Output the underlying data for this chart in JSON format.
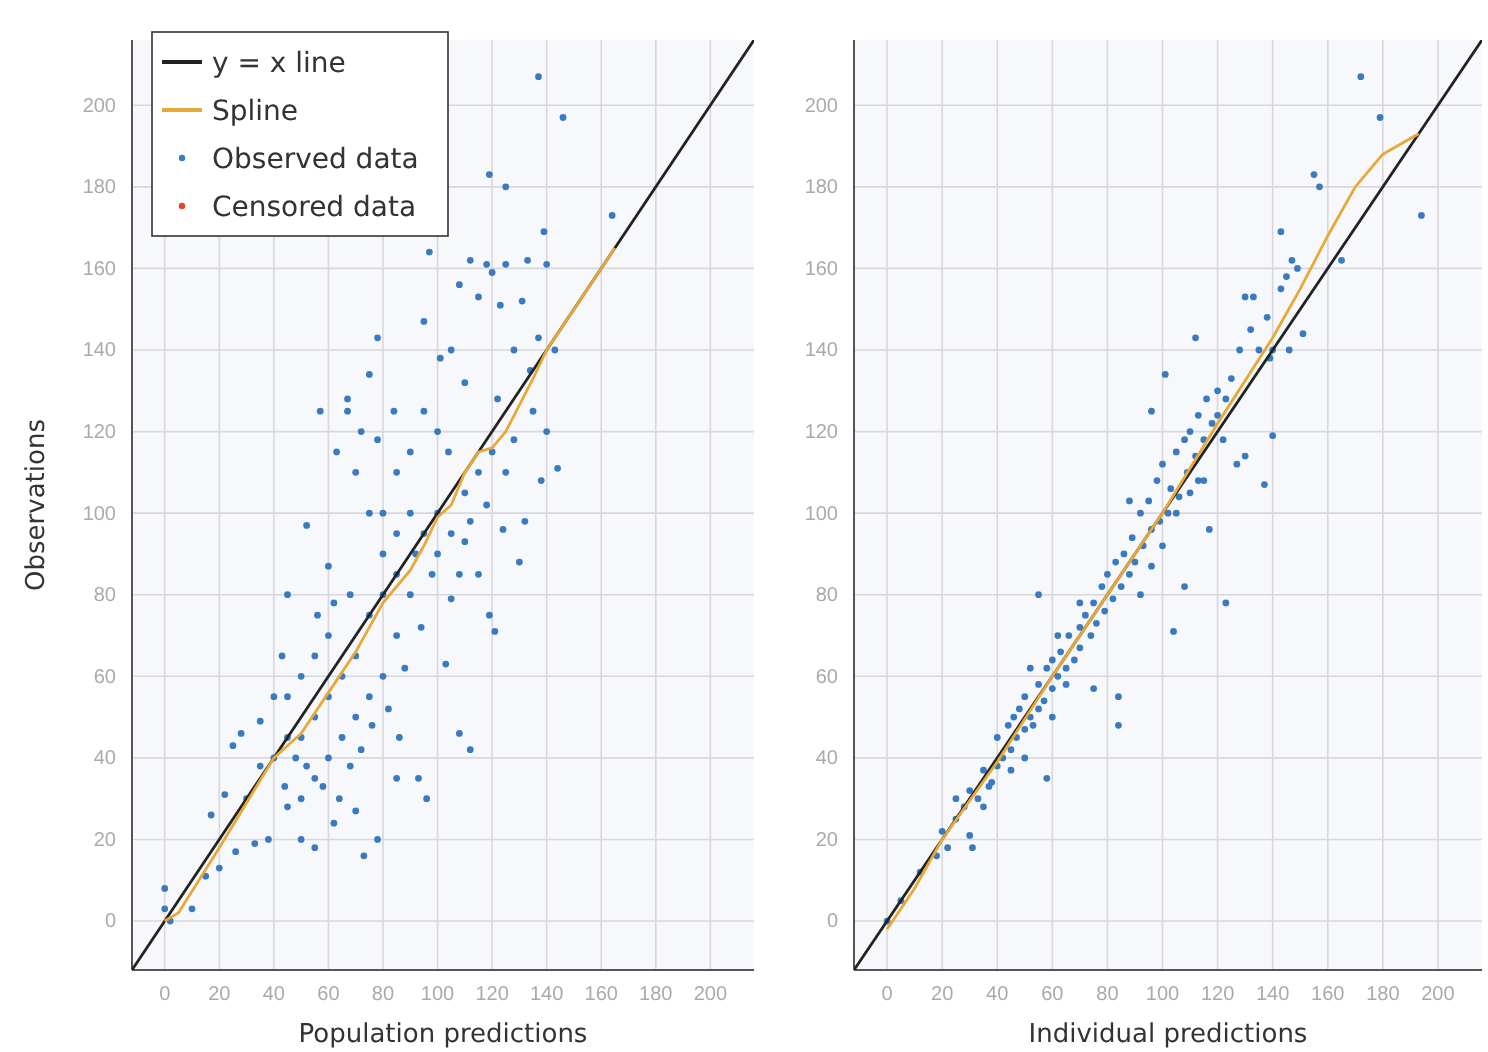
{
  "chart_data": [
    {
      "type": "scatter",
      "xlabel": "Population predictions",
      "ylabel": "Observations",
      "xlim": [
        -12,
        216
      ],
      "ylim": [
        -12,
        216
      ],
      "xticks": [
        0,
        20,
        40,
        60,
        80,
        100,
        120,
        140,
        160,
        180,
        200
      ],
      "yticks": [
        0,
        20,
        40,
        60,
        80,
        100,
        120,
        140,
        160,
        180,
        200
      ],
      "grid": true,
      "legend": "top left",
      "series": [
        {
          "name": "y = x line",
          "type": "line",
          "color": "#222222",
          "x": [
            -12,
            216
          ],
          "values": [
            -12,
            216
          ]
        },
        {
          "name": "Spline",
          "type": "line",
          "color": "#e8a838",
          "x": [
            0,
            5,
            20,
            40,
            50,
            60,
            70,
            80,
            90,
            95,
            100,
            105,
            110,
            115,
            120,
            125,
            135,
            140,
            150,
            165
          ],
          "values": [
            0,
            2,
            18,
            40,
            46,
            56,
            66,
            78,
            86,
            92,
            99,
            102,
            110,
            115,
            116,
            120,
            133,
            140,
            150,
            165
          ]
        },
        {
          "name": "Observed data",
          "color": "#3a7bbf",
          "x": [
            137,
            146,
            119,
            125,
            164,
            139,
            140,
            97,
            112,
            118,
            120,
            125,
            133,
            108,
            115,
            123,
            131,
            78,
            95,
            105,
            128,
            137,
            143,
            144,
            140,
            57,
            67,
            67,
            75,
            84,
            101,
            110,
            122,
            135,
            138,
            132,
            130,
            124,
            119,
            121,
            115,
            110,
            105,
            103,
            112,
            108,
            93,
            96,
            86,
            85,
            78,
            73,
            70,
            62,
            55,
            50,
            44,
            38,
            33,
            26,
            20,
            15,
            10,
            0,
            0,
            2,
            17,
            22,
            25,
            28,
            35,
            40,
            43,
            45,
            52,
            60,
            63,
            70,
            72,
            78,
            80,
            85,
            90,
            95,
            100,
            104,
            90,
            95,
            100,
            110,
            115,
            120,
            125,
            100,
            90,
            85,
            80,
            75,
            70,
            65,
            60,
            55,
            50,
            45,
            50,
            55,
            60,
            65,
            70,
            75,
            80,
            85,
            60,
            55,
            50,
            45,
            48,
            52,
            58,
            64,
            68,
            72,
            76,
            82,
            88,
            94,
            98,
            105,
            108,
            112,
            118,
            128,
            134,
            80,
            68,
            62,
            56,
            75,
            85,
            92,
            40,
            35,
            30,
            45
          ],
          "values": [
            207,
            197,
            183,
            180,
            173,
            169,
            161,
            164,
            162,
            161,
            159,
            161,
            162,
            156,
            153,
            151,
            152,
            143,
            147,
            140,
            140,
            143,
            140,
            111,
            120,
            125,
            128,
            125,
            134,
            125,
            138,
            132,
            128,
            125,
            108,
            98,
            88,
            96,
            75,
            71,
            85,
            93,
            79,
            63,
            42,
            46,
            35,
            30,
            45,
            35,
            20,
            16,
            27,
            24,
            18,
            20,
            33,
            20,
            19,
            17,
            13,
            11,
            3,
            8,
            3,
            0,
            26,
            31,
            43,
            46,
            49,
            55,
            65,
            80,
            97,
            87,
            115,
            110,
            120,
            118,
            100,
            110,
            115,
            125,
            120,
            115,
            100,
            95,
            90,
            105,
            110,
            115,
            110,
            100,
            80,
            70,
            60,
            55,
            50,
            45,
            40,
            35,
            30,
            28,
            45,
            50,
            55,
            60,
            65,
            75,
            80,
            85,
            70,
            65,
            60,
            55,
            40,
            38,
            33,
            30,
            38,
            42,
            48,
            52,
            62,
            72,
            85,
            95,
            85,
            98,
            102,
            118,
            135,
            90,
            80,
            78,
            75,
            100,
            95,
            90,
            40,
            38,
            30,
            45
          ]
        },
        {
          "name": "Censored data",
          "color": "#e8412c"
        }
      ]
    },
    {
      "type": "scatter",
      "xlabel": "Individual predictions",
      "xlim": [
        -12,
        216
      ],
      "ylim": [
        -12,
        216
      ],
      "xticks": [
        0,
        20,
        40,
        60,
        80,
        100,
        120,
        140,
        160,
        180,
        200
      ],
      "yticks": [
        0,
        20,
        40,
        60,
        80,
        100,
        120,
        140,
        160,
        180,
        200
      ],
      "grid": true,
      "series": [
        {
          "type": "line",
          "color": "#222222",
          "x": [
            -12,
            216
          ],
          "values": [
            -12,
            216
          ]
        },
        {
          "type": "line",
          "color": "#e8a838",
          "x": [
            0,
            10,
            20,
            40,
            60,
            80,
            100,
            120,
            140,
            150,
            160,
            170,
            180,
            193
          ],
          "values": [
            -2,
            8,
            20,
            39,
            60,
            80,
            100,
            122,
            143,
            155,
            168,
            180,
            188,
            193
          ]
        },
        {
          "color": "#3a7bbf",
          "x": [
            172,
            179,
            155,
            157,
            194,
            165,
            143,
            149,
            140,
            151,
            146,
            139,
            130,
            133,
            112,
            101,
            96,
            123,
            122,
            130,
            137,
            140,
            127,
            113,
            117,
            108,
            104,
            123,
            84,
            84,
            58,
            55,
            75,
            31,
            30,
            25,
            18,
            12,
            5,
            0,
            20,
            22,
            25,
            28,
            30,
            33,
            35,
            37,
            40,
            40,
            42,
            44,
            45,
            47,
            48,
            50,
            50,
            52,
            53,
            55,
            55,
            57,
            58,
            60,
            60,
            62,
            63,
            65,
            66,
            68,
            70,
            70,
            72,
            74,
            75,
            76,
            78,
            79,
            80,
            82,
            83,
            85,
            86,
            88,
            89,
            90,
            92,
            93,
            95,
            96,
            98,
            99,
            100,
            102,
            103,
            105,
            106,
            108,
            109,
            110,
            112,
            113,
            115,
            116,
            118,
            120,
            120,
            125,
            128,
            132,
            135,
            138,
            143,
            145,
            147,
            88,
            92,
            96,
            100,
            105,
            110,
            115,
            70,
            65,
            60,
            50,
            45,
            38,
            35,
            52,
            46,
            62
          ],
          "values": [
            207,
            197,
            183,
            180,
            173,
            162,
            169,
            160,
            140,
            144,
            140,
            138,
            153,
            153,
            143,
            134,
            125,
            128,
            118,
            114,
            107,
            119,
            112,
            108,
            96,
            82,
            71,
            78,
            55,
            48,
            35,
            80,
            57,
            18,
            21,
            25,
            16,
            12,
            5,
            0,
            22,
            18,
            30,
            28,
            32,
            30,
            37,
            33,
            45,
            38,
            40,
            48,
            42,
            45,
            52,
            47,
            55,
            50,
            48,
            58,
            52,
            54,
            62,
            57,
            64,
            60,
            66,
            62,
            70,
            64,
            72,
            67,
            75,
            70,
            78,
            73,
            82,
            76,
            85,
            79,
            88,
            82,
            90,
            85,
            94,
            88,
            100,
            92,
            103,
            96,
            108,
            98,
            112,
            100,
            106,
            115,
            104,
            118,
            110,
            120,
            114,
            124,
            118,
            128,
            122,
            130,
            124,
            133,
            140,
            145,
            140,
            148,
            155,
            158,
            162,
            103,
            80,
            87,
            92,
            100,
            105,
            108,
            78,
            58,
            50,
            40,
            37,
            34,
            28,
            62,
            50,
            70
          ]
        }
      ]
    }
  ]
}
